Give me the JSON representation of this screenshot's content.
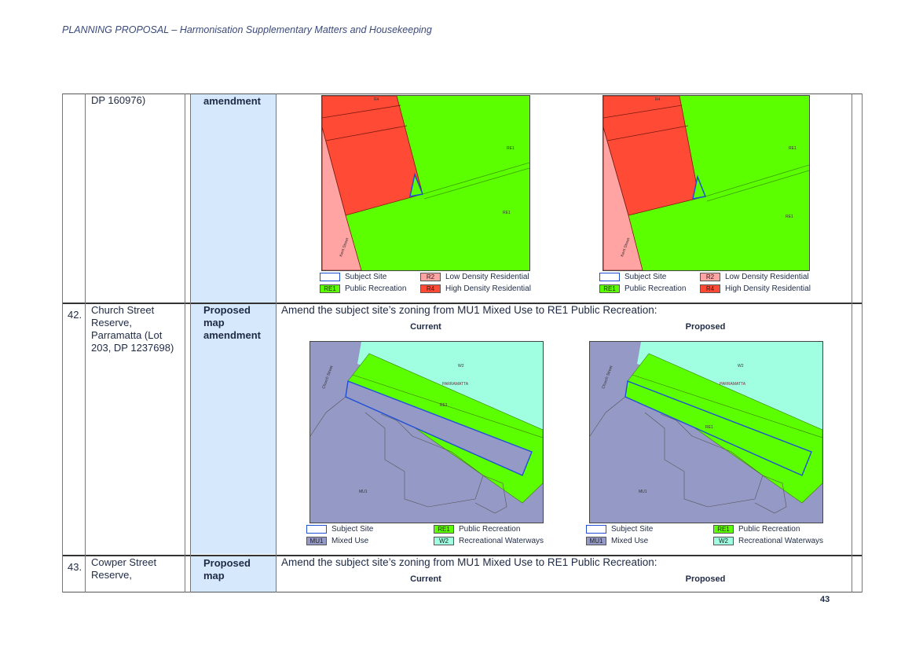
{
  "header": {
    "title": "PLANNING PROPOSAL – Harmonisation Supplementary Matters and Housekeeping"
  },
  "page_number": "43",
  "row_top": {
    "lot_fragment": "DP 160976)",
    "type_fragment": "amendment",
    "map_labels": {
      "r4": "R4",
      "re1": "RE1",
      "re1_b": "RE1",
      "street": "Kent Street"
    },
    "legend": {
      "subject_site": "Subject Site",
      "public_recreation": "Public Recreation",
      "low_density": "Low Density Residential",
      "high_density": "High Density Residential",
      "code_re1": "RE1",
      "code_r2": "R2",
      "code_r4": "R4"
    }
  },
  "row_42": {
    "number": "42.",
    "site_name": "Church Street Reserve, Parramatta (Lot 203, DP 1237698)",
    "type": "Proposed map amendment",
    "description": "Amend the subject site’s zoning from MU1 Mixed Use to RE1 Public Recreation:",
    "caption_current": "Current",
    "caption_proposed": "Proposed",
    "map_labels": {
      "w2": "W2",
      "parramatta": "PARRAMATTA",
      "re1": "RE1",
      "mu1": "MU1",
      "street": "Church Street"
    },
    "legend": {
      "subject_site": "Subject Site",
      "mixed_use": "Mixed Use",
      "public_recreation": "Public Recreation",
      "recreational_waterways": "Recreational Waterways",
      "code_mu1": "MU1",
      "code_re1": "RE1",
      "code_w2": "W2"
    }
  },
  "row_43": {
    "number": "43.",
    "site_name": "Cowper Street Reserve,",
    "type": "Proposed map",
    "description": "Amend the subject site’s zoning from MU1 Mixed Use to RE1 Public Recreation:",
    "caption_current": "Current",
    "caption_proposed": "Proposed"
  },
  "colors": {
    "re1": "#5cff00",
    "r4": "#ff4a36",
    "r2": "#ffa3a3",
    "mu1": "#9599c6",
    "w2": "#9fffe0",
    "subject_outline": "#1f4fd6",
    "type_column": "#d6e8fb"
  }
}
